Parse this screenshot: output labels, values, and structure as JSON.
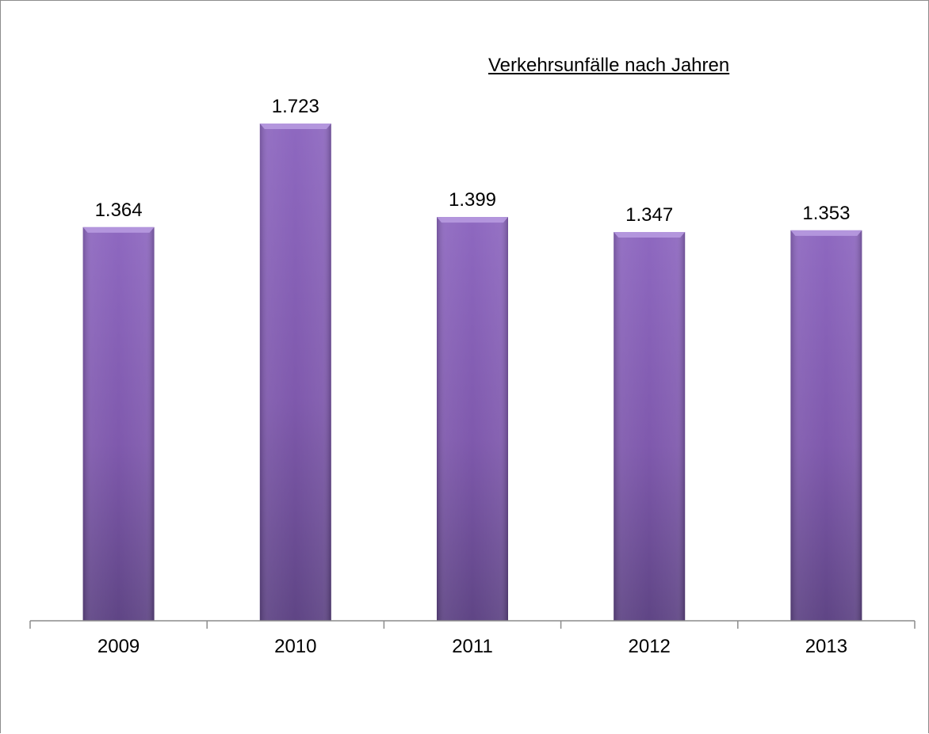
{
  "chart_data": {
    "type": "bar",
    "title": "Verkehrsunfälle nach Jahren",
    "categories": [
      "2009",
      "2010",
      "2011",
      "2012",
      "2013"
    ],
    "values": [
      1364,
      1723,
      1399,
      1347,
      1353
    ],
    "data_labels": [
      "1.364",
      "1.723",
      "1.399",
      "1.347",
      "1.353"
    ],
    "xlabel": "",
    "ylabel": "",
    "ylim": [
      0,
      2000
    ],
    "grid": false,
    "legend": "none",
    "colors": {
      "bar_top": "#8e68c0",
      "bar_mid": "#7f59ad",
      "bar_bottom": "#5f4585",
      "bar_cap": "#b79ae0",
      "axis": "#8c8c8c"
    }
  }
}
